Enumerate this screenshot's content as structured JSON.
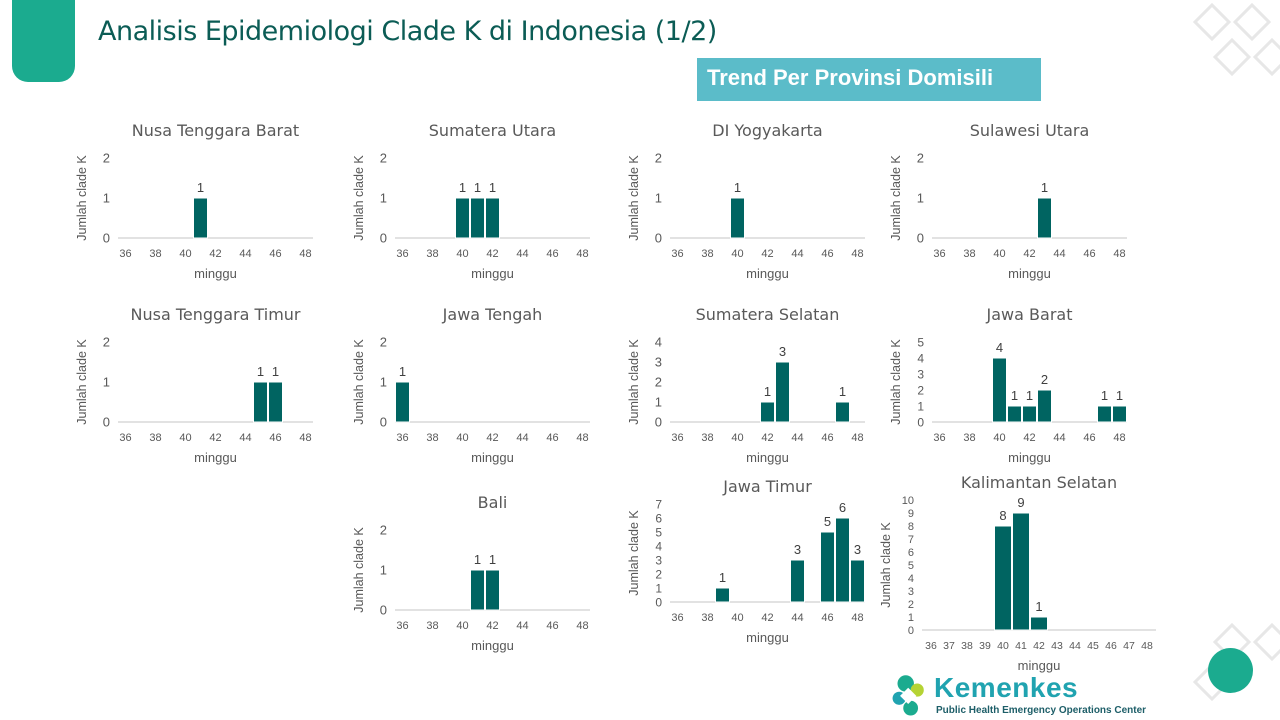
{
  "title": "Analisis Epidemiologi Clade K di Indonesia (1/2)",
  "badge": "Trend Per Provinsi Domisili",
  "logo": {
    "name": "Kemenkes",
    "subtitle": "Public Health Emergency Operations Center"
  },
  "colors": {
    "bar": "#006461",
    "title": "#0b5c55",
    "badge": "#5bbcc9",
    "accent": "#1bab8f"
  },
  "chart_data": [
    {
      "type": "bar",
      "title": "Nusa Tenggara Barat",
      "xlabel": "minggu",
      "ylabel": "Jumlah clade K",
      "ylim": [
        0,
        2
      ],
      "x": [
        36,
        37,
        38,
        39,
        40,
        41,
        42,
        43,
        44,
        45,
        46,
        47,
        48
      ],
      "values": [
        0,
        0,
        0,
        0,
        0,
        1,
        0,
        0,
        0,
        0,
        0,
        0,
        0
      ]
    },
    {
      "type": "bar",
      "title": "Sumatera Utara",
      "xlabel": "minggu",
      "ylabel": "Jumlah clade K",
      "ylim": [
        0,
        2
      ],
      "x": [
        36,
        37,
        38,
        39,
        40,
        41,
        42,
        43,
        44,
        45,
        46,
        47,
        48
      ],
      "values": [
        0,
        0,
        0,
        0,
        1,
        1,
        1,
        0,
        0,
        0,
        0,
        0,
        0
      ]
    },
    {
      "type": "bar",
      "title": "DI Yogyakarta",
      "xlabel": "minggu",
      "ylabel": "Jumlah clade K",
      "ylim": [
        0,
        2
      ],
      "x": [
        36,
        37,
        38,
        39,
        40,
        41,
        42,
        43,
        44,
        45,
        46,
        47,
        48
      ],
      "values": [
        0,
        0,
        0,
        0,
        1,
        0,
        0,
        0,
        0,
        0,
        0,
        0,
        0
      ]
    },
    {
      "type": "bar",
      "title": "Sulawesi Utara",
      "xlabel": "minggu",
      "ylabel": "Jumlah clade K",
      "ylim": [
        0,
        2
      ],
      "x": [
        36,
        37,
        38,
        39,
        40,
        41,
        42,
        43,
        44,
        45,
        46,
        47,
        48
      ],
      "values": [
        0,
        0,
        0,
        0,
        0,
        0,
        0,
        1,
        0,
        0,
        0,
        0,
        0
      ]
    },
    {
      "type": "bar",
      "title": "Nusa Tenggara Timur",
      "xlabel": "minggu",
      "ylabel": "Jumlah clade K",
      "ylim": [
        0,
        2
      ],
      "x": [
        36,
        37,
        38,
        39,
        40,
        41,
        42,
        43,
        44,
        45,
        46,
        47,
        48
      ],
      "values": [
        0,
        0,
        0,
        0,
        0,
        0,
        0,
        0,
        0,
        1,
        1,
        0,
        0
      ]
    },
    {
      "type": "bar",
      "title": "Jawa Tengah",
      "xlabel": "minggu",
      "ylabel": "Jumlah clade K",
      "ylim": [
        0,
        2
      ],
      "x": [
        36,
        37,
        38,
        39,
        40,
        41,
        42,
        43,
        44,
        45,
        46,
        47,
        48
      ],
      "values": [
        1,
        0,
        0,
        0,
        0,
        0,
        0,
        0,
        0,
        0,
        0,
        0,
        0
      ]
    },
    {
      "type": "bar",
      "title": "Sumatera Selatan",
      "xlabel": "minggu",
      "ylabel": "Jumlah clade K",
      "ylim": [
        0,
        4
      ],
      "x": [
        36,
        37,
        38,
        39,
        40,
        41,
        42,
        43,
        44,
        45,
        46,
        47,
        48
      ],
      "values": [
        0,
        0,
        0,
        0,
        0,
        0,
        1,
        3,
        0,
        0,
        0,
        1,
        0
      ]
    },
    {
      "type": "bar",
      "title": "Jawa Barat",
      "xlabel": "minggu",
      "ylabel": "Jumlah clade K",
      "ylim": [
        0,
        5
      ],
      "x": [
        36,
        37,
        38,
        39,
        40,
        41,
        42,
        43,
        44,
        45,
        46,
        47,
        48
      ],
      "values": [
        0,
        0,
        0,
        0,
        4,
        1,
        1,
        2,
        0,
        0,
        0,
        1,
        1
      ]
    },
    {
      "type": "bar",
      "title": "Bali",
      "xlabel": "minggu",
      "ylabel": "Jumlah clade K",
      "ylim": [
        0,
        2
      ],
      "x": [
        36,
        37,
        38,
        39,
        40,
        41,
        42,
        43,
        44,
        45,
        46,
        47,
        48
      ],
      "values": [
        0,
        0,
        0,
        0,
        0,
        1,
        1,
        0,
        0,
        0,
        0,
        0,
        0
      ]
    },
    {
      "type": "bar",
      "title": "Jawa Timur",
      "xlabel": "minggu",
      "ylabel": "Jumlah clade K",
      "ylim": [
        0,
        7
      ],
      "x": [
        36,
        37,
        38,
        39,
        40,
        41,
        42,
        43,
        44,
        45,
        46,
        47,
        48
      ],
      "values": [
        0,
        0,
        0,
        1,
        0,
        0,
        0,
        0,
        3,
        0,
        5,
        6,
        3
      ]
    },
    {
      "type": "bar",
      "title": "Kalimantan Selatan",
      "xlabel": "minggu",
      "ylabel": "Jumlah clade K",
      "ylim": [
        0,
        10
      ],
      "x": [
        36,
        37,
        38,
        39,
        40,
        41,
        42,
        43,
        44,
        45,
        46,
        47,
        48
      ],
      "values": [
        0,
        0,
        0,
        0,
        8,
        9,
        1,
        0,
        0,
        0,
        0,
        0,
        0
      ],
      "all_x_ticks": true
    }
  ]
}
